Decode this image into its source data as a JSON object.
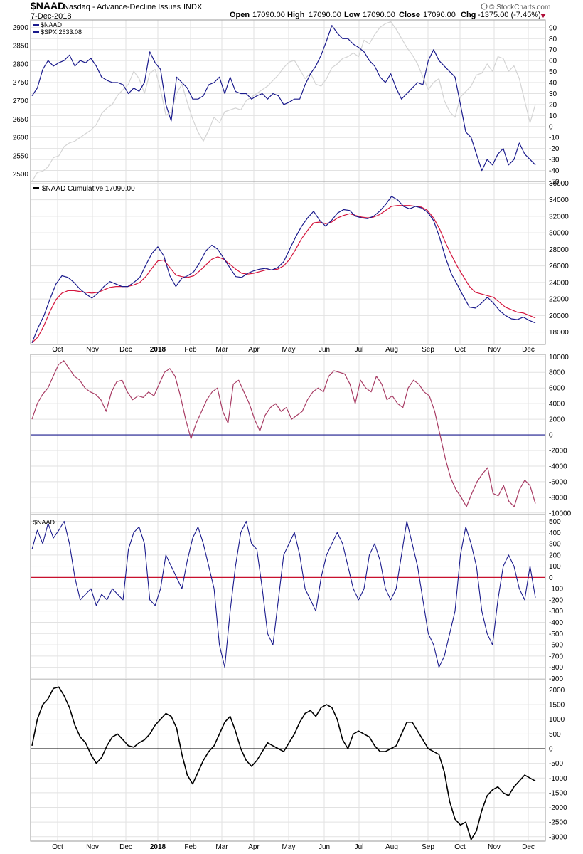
{
  "header": {
    "symbol": "$NAAD",
    "description": "Nasdaq - Advance-Decline Issues",
    "exchange": "INDX",
    "date": "7-Dec-2018",
    "open_label": "Open",
    "open_value": "17090.00",
    "high_label": "High",
    "high_value": "17090.00",
    "low_label": "Low",
    "low_value": "17090.00",
    "close_label": "Close",
    "close_value": "17090.00",
    "chg_label": "Chg",
    "chg_value": "-1375.00 (-7.45%)",
    "brand": "© StockCharts.com"
  },
  "colors": {
    "naad": "#1a1a8c",
    "spx": "#d4d4d4",
    "cum_ma": "#d4143c",
    "p3": "#a83c64",
    "p3_zero": "#1a1a8c",
    "p4_zero": "#c8102e",
    "p5": "#000000",
    "grid": "#e2e2e2"
  },
  "x_axis": {
    "labels": [
      "Oct",
      "Nov",
      "Dec",
      "2018",
      "Feb",
      "Mar",
      "Apr",
      "May",
      "Jun",
      "Jul",
      "Aug",
      "Sep",
      "Oct",
      "Nov",
      "Dec"
    ],
    "bold": [
      false,
      false,
      false,
      true,
      false,
      false,
      false,
      false,
      false,
      false,
      false,
      false,
      false,
      false,
      false
    ]
  },
  "chart_data": [
    {
      "type": "line",
      "panel": 1,
      "legend": [
        "$NAAD",
        "$SPX 2633.08"
      ],
      "left_axis_ticks": [
        "2500",
        "2550",
        "2600",
        "2650",
        "2700",
        "2750",
        "2800",
        "2850",
        "2900"
      ],
      "right_axis_ticks": [
        "-50",
        "-40",
        "-30",
        "-20",
        "-10",
        "0",
        "10",
        "20",
        "30",
        "40",
        "50",
        "60",
        "70",
        "80",
        "90"
      ],
      "ylim_left": [
        2480,
        2920
      ],
      "ylim_right": [
        -50,
        97
      ],
      "series": [
        {
          "name": "$SPX",
          "axis": "left",
          "values": [
            2480,
            2505,
            2508,
            2520,
            2545,
            2550,
            2575,
            2585,
            2590,
            2600,
            2610,
            2620,
            2635,
            2665,
            2680,
            2690,
            2715,
            2730,
            2745,
            2780,
            2760,
            2720,
            2775,
            2785,
            2730,
            2660,
            2670,
            2720,
            2745,
            2695,
            2650,
            2615,
            2590,
            2620,
            2655,
            2640,
            2670,
            2675,
            2680,
            2675,
            2700,
            2710,
            2720,
            2730,
            2740,
            2755,
            2770,
            2790,
            2805,
            2810,
            2785,
            2760,
            2775,
            2745,
            2740,
            2760,
            2790,
            2800,
            2815,
            2820,
            2830,
            2820,
            2865,
            2855,
            2880,
            2900,
            2910,
            2915,
            2895,
            2870,
            2845,
            2825,
            2800,
            2765,
            2730,
            2750,
            2760,
            2700,
            2670,
            2655,
            2710,
            2725,
            2740,
            2770,
            2775,
            2800,
            2780,
            2820,
            2815,
            2780,
            2795,
            2760,
            2700,
            2640,
            2690
          ]
        },
        {
          "name": "$NAAD",
          "axis": "right",
          "values": [
            28,
            35,
            52,
            60,
            55,
            58,
            60,
            65,
            55,
            60,
            58,
            62,
            55,
            45,
            42,
            40,
            40,
            38,
            30,
            35,
            32,
            40,
            68,
            58,
            52,
            20,
            5,
            45,
            40,
            35,
            25,
            25,
            28,
            38,
            40,
            45,
            30,
            45,
            32,
            30,
            30,
            25,
            28,
            30,
            25,
            30,
            28,
            20,
            22,
            25,
            25,
            38,
            48,
            55,
            65,
            78,
            92,
            85,
            80,
            80,
            75,
            72,
            68,
            60,
            55,
            45,
            40,
            48,
            35,
            25,
            30,
            35,
            40,
            38,
            60,
            70,
            60,
            55,
            50,
            45,
            20,
            -5,
            -10,
            -25,
            -40,
            -30,
            -35,
            -25,
            -20,
            -35,
            -30,
            -15,
            -25,
            -30,
            -35
          ]
        }
      ]
    },
    {
      "type": "line",
      "panel": 2,
      "legend": [
        "$NAAD Cumulative 17090.00"
      ],
      "axis_ticks": [
        "18000",
        "20000",
        "22000",
        "24000",
        "26000",
        "28000",
        "30000",
        "32000",
        "34000",
        "36000"
      ],
      "ylim": [
        16500,
        36200
      ],
      "series": [
        {
          "name": "$NAAD Cumulative",
          "values": [
            16700,
            18500,
            20000,
            22000,
            23800,
            24800,
            24600,
            24000,
            23200,
            22600,
            22100,
            22700,
            23500,
            24100,
            23800,
            23500,
            23500,
            24000,
            24600,
            26100,
            27500,
            28300,
            27200,
            24800,
            23500,
            24500,
            24800,
            25300,
            26400,
            27800,
            28500,
            28000,
            26900,
            25800,
            24700,
            24600,
            25100,
            25400,
            25600,
            25700,
            25500,
            25800,
            26500,
            28000,
            29500,
            30800,
            31800,
            32600,
            31500,
            30800,
            31500,
            32400,
            32800,
            32700,
            32000,
            31800,
            31700,
            32000,
            32600,
            33400,
            34400,
            34000,
            33200,
            32900,
            33200,
            33000,
            32500,
            31500,
            29500,
            27000,
            25000,
            23700,
            22300,
            21000,
            20900,
            21500,
            22200,
            21500,
            20600,
            20000,
            19600,
            19500,
            19800,
            19400,
            19100
          ]
        },
        {
          "name": "MA",
          "values": [
            16700,
            17400,
            18800,
            20500,
            21900,
            22700,
            23000,
            23000,
            22900,
            22800,
            22700,
            22800,
            23100,
            23400,
            23500,
            23500,
            23500,
            23700,
            24000,
            24700,
            25700,
            26600,
            26700,
            25800,
            24900,
            24700,
            24600,
            24800,
            25400,
            26100,
            26800,
            27100,
            26800,
            26200,
            25600,
            25100,
            25000,
            25100,
            25300,
            25500,
            25500,
            25600,
            26000,
            26800,
            28000,
            29300,
            30300,
            31200,
            31300,
            31100,
            31300,
            31800,
            32100,
            32300,
            32100,
            31900,
            31800,
            31900,
            32200,
            32700,
            33200,
            33300,
            33300,
            33300,
            33200,
            33100,
            32700,
            31800,
            30500,
            28800,
            27300,
            25900,
            24700,
            23500,
            22800,
            22600,
            22400,
            22200,
            21600,
            21000,
            20700,
            20400,
            20300,
            20000,
            19700
          ]
        }
      ]
    },
    {
      "type": "line",
      "panel": 3,
      "axis_ticks": [
        "-10000",
        "-8000",
        "-6000",
        "-4000",
        "-2000",
        "0",
        "2000",
        "4000",
        "6000",
        "8000",
        "10000"
      ],
      "ylim": [
        -10200,
        10300
      ],
      "reference_line": 0,
      "series": [
        {
          "name": "$NAAD",
          "values": [
            2000,
            4000,
            5200,
            6000,
            7500,
            9000,
            9500,
            8500,
            7500,
            7000,
            6000,
            5500,
            5200,
            4500,
            3000,
            5500,
            6800,
            7000,
            5500,
            4500,
            5000,
            4800,
            5500,
            5000,
            6500,
            8000,
            8500,
            7500,
            5000,
            2000,
            -500,
            1500,
            3000,
            4500,
            5500,
            6000,
            3000,
            1500,
            6500,
            7000,
            5500,
            4000,
            2000,
            500,
            2500,
            3500,
            4000,
            3000,
            3500,
            2000,
            2500,
            3000,
            4500,
            5500,
            6000,
            5500,
            7500,
            8200,
            8000,
            7800,
            6500,
            4000,
            7000,
            6000,
            5500,
            7500,
            6500,
            4500,
            5000,
            4000,
            3500,
            6000,
            7000,
            6500,
            5500,
            5000,
            3000,
            0,
            -3000,
            -5500,
            -7000,
            -8000,
            -9200,
            -7500,
            -6000,
            -5000,
            -4200,
            -7500,
            -7800,
            -6500,
            -8500,
            -9200,
            -7000,
            -5800,
            -6500,
            -8800
          ]
        }
      ]
    },
    {
      "type": "line",
      "panel": 4,
      "legend": [
        "$NAAD"
      ],
      "axis_ticks": [
        "-900",
        "-800",
        "-700",
        "-600",
        "-500",
        "-400",
        "-300",
        "-200",
        "-100",
        "0",
        "100",
        "200",
        "300",
        "400",
        "500"
      ],
      "ylim": [
        -910,
        560
      ],
      "reference_line": 0,
      "series": [
        {
          "name": "$NAAD",
          "values": [
            250,
            420,
            300,
            480,
            350,
            420,
            500,
            300,
            0,
            -200,
            -150,
            -100,
            -250,
            -150,
            -200,
            -100,
            -150,
            -200,
            250,
            400,
            450,
            300,
            -200,
            -250,
            -100,
            200,
            100,
            0,
            -100,
            150,
            350,
            450,
            300,
            100,
            -100,
            -600,
            -800,
            -300,
            100,
            400,
            500,
            300,
            250,
            -100,
            -500,
            -600,
            -200,
            200,
            300,
            400,
            200,
            -100,
            -200,
            -300,
            0,
            200,
            300,
            400,
            300,
            100,
            -100,
            -200,
            -100,
            200,
            300,
            150,
            -100,
            -200,
            -100,
            200,
            500,
            300,
            100,
            -200,
            -500,
            -600,
            -800,
            -700,
            -500,
            -300,
            200,
            450,
            300,
            100,
            -300,
            -500,
            -600,
            -200,
            100,
            200,
            100,
            -100,
            -200,
            100,
            -180
          ]
        }
      ]
    },
    {
      "type": "line",
      "panel": 5,
      "axis_ticks": [
        "-3000",
        "-2500",
        "-2000",
        "-1500",
        "-1000",
        "-500",
        "0",
        "500",
        "1000",
        "1500",
        "2000"
      ],
      "ylim": [
        -3150,
        2350
      ],
      "reference_line": 0,
      "series": [
        {
          "name": "$NAAD",
          "values": [
            100,
            1000,
            1500,
            1700,
            2050,
            2100,
            1800,
            1400,
            800,
            400,
            200,
            -200,
            -500,
            -300,
            100,
            400,
            500,
            300,
            100,
            50,
            200,
            300,
            500,
            800,
            1000,
            1200,
            1100,
            700,
            -200,
            -900,
            -1200,
            -800,
            -400,
            -100,
            100,
            500,
            900,
            1100,
            600,
            0,
            -400,
            -600,
            -400,
            -100,
            200,
            100,
            0,
            -100,
            200,
            500,
            900,
            1200,
            1300,
            1100,
            1400,
            1500,
            1400,
            1000,
            300,
            0,
            500,
            600,
            500,
            400,
            100,
            -100,
            -100,
            0,
            100,
            500,
            900,
            900,
            600,
            300,
            0,
            -100,
            -200,
            -800,
            -1800,
            -2400,
            -2600,
            -2500,
            -3100,
            -2800,
            -2100,
            -1600,
            -1400,
            -1300,
            -1500,
            -1600,
            -1300,
            -1100,
            -900,
            -1000,
            -1100
          ]
        }
      ]
    }
  ]
}
